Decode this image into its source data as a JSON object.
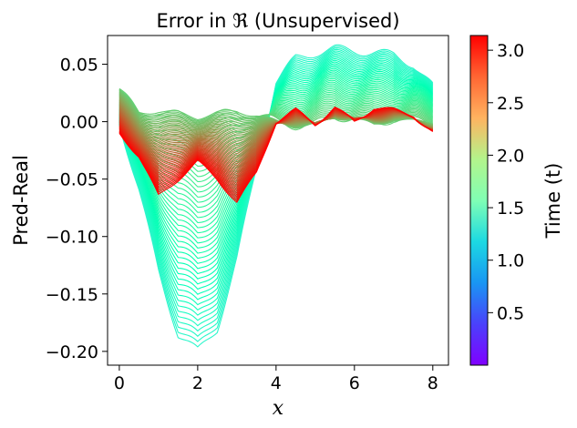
{
  "chart_data": {
    "type": "line",
    "title": "Error in ℜ (Unsupervised)",
    "xlabel": "x",
    "ylabel": "Pred-Real",
    "xlim": [
      -0.3,
      8.4
    ],
    "ylim": [
      -0.212,
      0.075
    ],
    "x_ticks": [
      0,
      2,
      4,
      6,
      8
    ],
    "x_tick_labels": [
      "0",
      "2",
      "4",
      "6",
      "8"
    ],
    "y_ticks": [
      0.05,
      0.0,
      -0.05,
      -0.1,
      -0.15,
      -0.2
    ],
    "y_tick_labels": [
      "0.05",
      "0.00",
      "−0.05",
      "−0.10",
      "−0.15",
      "−0.20"
    ],
    "grid": false,
    "colorbar": {
      "label": "Time (t)",
      "colormap": "rainbow",
      "range": [
        0.0,
        3.14
      ],
      "ticks": [
        0.5,
        1.0,
        1.5,
        2.0,
        2.5,
        3.0
      ],
      "tick_labels": [
        "0.5",
        "1.0",
        "1.5",
        "2.0",
        "2.5",
        "3.0"
      ]
    },
    "series_description_values": {
      "x": [
        0,
        0.5,
        1,
        1.5,
        2,
        2.5,
        3,
        3.5,
        4,
        4.5,
        5,
        5.5,
        6,
        6.5,
        7,
        7.5,
        8
      ],
      "curve_t_1.3": [
        0.0,
        -0.06,
        -0.13,
        -0.185,
        -0.2,
        -0.18,
        -0.12,
        -0.04,
        0.035,
        0.055,
        0.06,
        0.063,
        0.062,
        0.06,
        0.058,
        0.05,
        0.03
      ],
      "curve_t_2.2": [
        0.028,
        0.008,
        0.01,
        0.008,
        0.004,
        0.008,
        0.01,
        0.006,
        0.0,
        -0.004,
        -0.003,
        0.004,
        0.002,
        -0.003,
        0.002,
        0.0,
        0.0
      ],
      "curve_t_3.14": [
        -0.01,
        -0.03,
        -0.065,
        -0.05,
        -0.035,
        -0.05,
        -0.07,
        -0.045,
        0.0,
        0.01,
        -0.002,
        0.012,
        0.0,
        0.012,
        0.01,
        0.006,
        -0.01
      ]
    }
  }
}
